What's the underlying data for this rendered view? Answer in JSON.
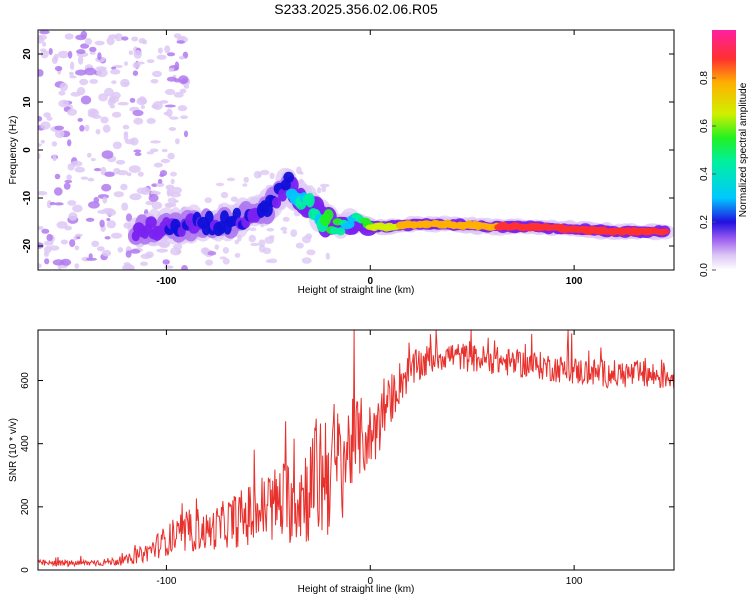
{
  "title": "S233.2025.356.02.06.R05",
  "colors": {
    "snr_line": "#e8302c",
    "colormap": [
      "#ffffff",
      "#ddc8f5",
      "#b07af0",
      "#7a22f0",
      "#1010d8",
      "#00c8ff",
      "#00f0a0",
      "#22f022",
      "#d0f000",
      "#ffb000",
      "#ff3030",
      "#ff20a0"
    ]
  },
  "chart_data": [
    {
      "type": "heatmap",
      "name": "spectrogram",
      "xlabel": "Height of straight line (km)",
      "ylabel": "Frequency (Hz)",
      "xlim": [
        -163,
        149
      ],
      "ylim": [
        -25,
        25
      ],
      "xticks": [
        -100,
        0,
        100
      ],
      "xtick_labels": [
        "-100",
        "0",
        "100"
      ],
      "yticks": [
        20,
        10,
        0,
        -10,
        -20
      ],
      "ytick_labels": [
        "20",
        "10",
        "0",
        "-10",
        "-20"
      ],
      "colorbar": {
        "label": "Normalized spectral amplitude",
        "range": [
          0,
          1
        ],
        "ticks": [
          0.0,
          0.2,
          0.4,
          0.6,
          0.8
        ],
        "tick_labels": [
          "0.0",
          "0.2",
          "0.4",
          "0.6",
          "0.8"
        ]
      },
      "ridge": {
        "x": [
          -115,
          -100,
          -85,
          -70,
          -60,
          -50,
          -45,
          -40,
          -35,
          -30,
          -25,
          -20,
          -15,
          -10,
          -5,
          0,
          10,
          20,
          40,
          60,
          80,
          100,
          120,
          145
        ],
        "frequency": [
          -16.5,
          -16,
          -15.5,
          -15,
          -14,
          -12,
          -9,
          -7,
          -10,
          -11,
          -14,
          -15,
          -16,
          -15,
          -15,
          -16,
          -16,
          -15.5,
          -15.5,
          -16,
          -16,
          -16.5,
          -17,
          -17
        ],
        "amplitude": [
          0.25,
          0.3,
          0.3,
          0.35,
          0.3,
          0.35,
          0.3,
          0.35,
          0.5,
          0.5,
          0.55,
          0.6,
          0.6,
          0.45,
          0.55,
          0.7,
          0.75,
          0.8,
          0.85,
          0.85,
          0.95,
          0.9,
          0.95,
          0.95
        ]
      },
      "noise_region_x": [
        -163,
        -100
      ]
    },
    {
      "type": "line",
      "name": "snr",
      "xlabel": "Height of straight line (km)",
      "ylabel": "SNR (10 * v/v)",
      "xlim": [
        -163,
        149
      ],
      "ylim": [
        0,
        760
      ],
      "xticks": [
        -100,
        0,
        100
      ],
      "xtick_labels": [
        "-100",
        "0",
        "100"
      ],
      "yticks": [
        0,
        200,
        400,
        600
      ],
      "ytick_labels": [
        "0",
        "200",
        "400",
        "600"
      ],
      "series": [
        {
          "name": "SNR",
          "x": [
            -163,
            -150,
            -140,
            -130,
            -120,
            -110,
            -100,
            -90,
            -85,
            -80,
            -70,
            -60,
            -50,
            -40,
            -30,
            -25,
            -20,
            -15,
            -10,
            -5,
            0,
            5,
            10,
            15,
            20,
            25,
            30,
            35,
            40,
            50,
            60,
            70,
            80,
            90,
            100,
            110,
            120,
            130,
            140,
            149
          ],
          "base": [
            22,
            20,
            22,
            25,
            30,
            55,
            95,
            110,
            130,
            120,
            150,
            170,
            200,
            220,
            250,
            300,
            330,
            330,
            390,
            420,
            420,
            470,
            540,
            600,
            630,
            650,
            670,
            680,
            680,
            670,
            665,
            655,
            650,
            640,
            630,
            625,
            620,
            620,
            615,
            615
          ],
          "noise": [
            10,
            10,
            10,
            12,
            15,
            30,
            50,
            60,
            70,
            60,
            80,
            100,
            120,
            140,
            170,
            220,
            230,
            200,
            150,
            130,
            110,
            100,
            80,
            70,
            60,
            55,
            50,
            50,
            45,
            45,
            45,
            45,
            45,
            45,
            45,
            45,
            45,
            45,
            45,
            45
          ]
        }
      ]
    }
  ]
}
